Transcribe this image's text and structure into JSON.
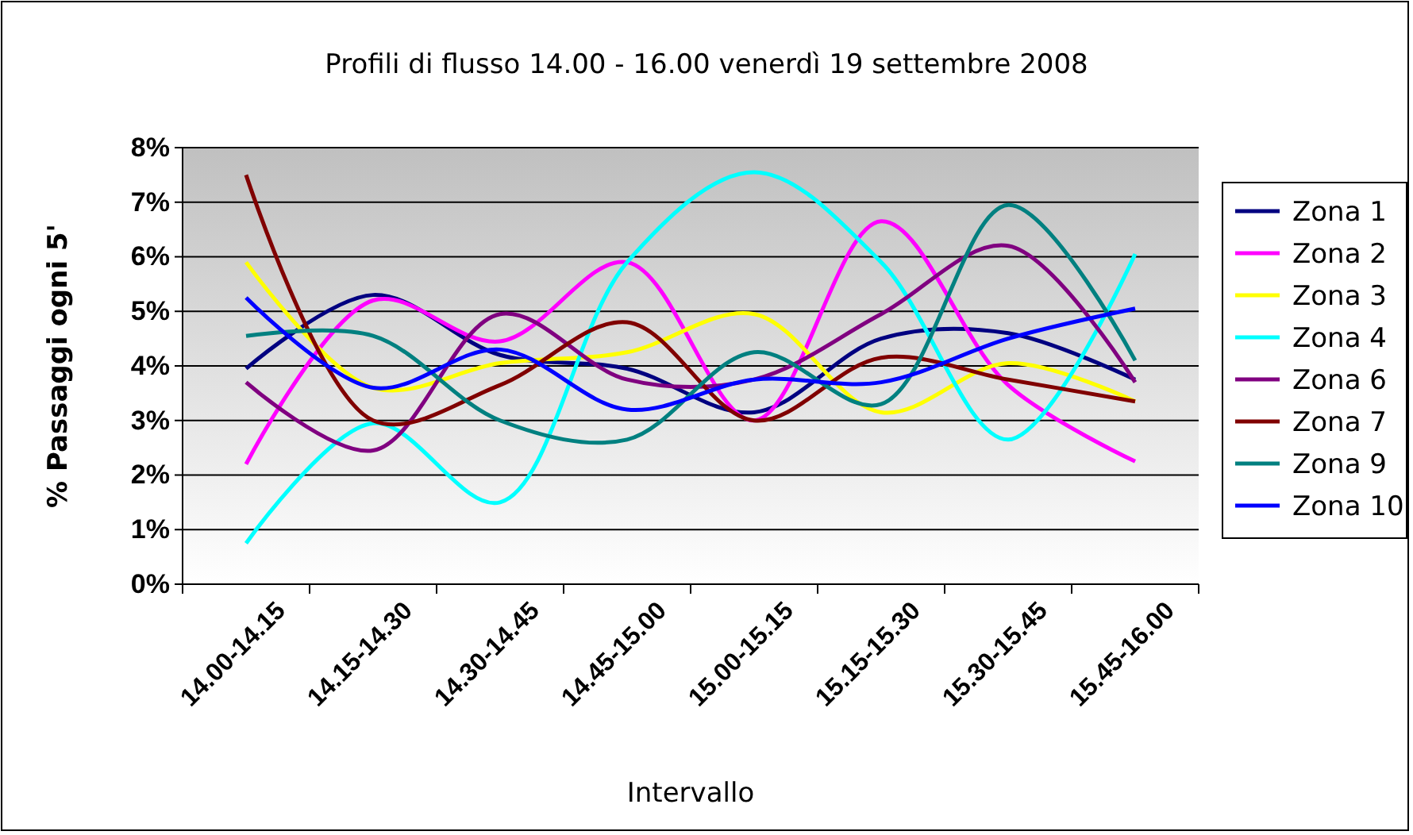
{
  "chart_data": {
    "type": "line",
    "title": "Profili di flusso 14.00 - 16.00 venerdì 19 settembre 2008",
    "xlabel": "Intervallo",
    "ylabel": "% Passaggi ogni 5'",
    "categories": [
      "14.00-14.15",
      "14.15-14.30",
      "14.30-14.45",
      "14.45-15.00",
      "15.00-15.15",
      "15.15-15.30",
      "15.30-15.45",
      "15.45-16.00"
    ],
    "ylim": [
      0,
      8
    ],
    "yticks": [
      {
        "value": 0,
        "label": "0%"
      },
      {
        "value": 1,
        "label": "1%"
      },
      {
        "value": 2,
        "label": "2%"
      },
      {
        "value": 3,
        "label": "3%"
      },
      {
        "value": 4,
        "label": "4%"
      },
      {
        "value": 5,
        "label": "5%"
      },
      {
        "value": 6,
        "label": "6%"
      },
      {
        "value": 7,
        "label": "7%"
      },
      {
        "value": 8,
        "label": "8%"
      }
    ],
    "grid": "y",
    "legend": "right",
    "marker": "none",
    "line_style": "solid",
    "series": [
      {
        "name": "Zona 1",
        "color": "#000080",
        "values": [
          3.95,
          5.3,
          4.2,
          3.95,
          3.15,
          4.5,
          4.6,
          3.75
        ]
      },
      {
        "name": "Zona 2",
        "color": "#ff00ff",
        "values": [
          2.2,
          5.2,
          4.45,
          5.9,
          3.0,
          6.65,
          3.65,
          2.25
        ]
      },
      {
        "name": "Zona 3",
        "color": "#ffff00",
        "values": [
          5.9,
          3.6,
          4.05,
          4.25,
          4.95,
          3.15,
          4.05,
          3.35
        ]
      },
      {
        "name": "Zona 4",
        "color": "#00ffff",
        "values": [
          0.75,
          2.95,
          1.5,
          5.9,
          7.55,
          5.9,
          2.65,
          6.05
        ]
      },
      {
        "name": "Zona 6",
        "color": "#800080",
        "values": [
          3.7,
          2.45,
          4.95,
          3.75,
          3.75,
          4.95,
          6.2,
          3.7
        ]
      },
      {
        "name": "Zona 7",
        "color": "#800000",
        "values": [
          7.5,
          3.0,
          3.65,
          4.8,
          3.0,
          4.15,
          3.75,
          3.35
        ]
      },
      {
        "name": "Zona 9",
        "color": "#008080",
        "values": [
          4.55,
          4.55,
          3.0,
          2.65,
          4.25,
          3.3,
          6.95,
          4.1
        ]
      },
      {
        "name": "Zona 10",
        "color": "#0000ff",
        "values": [
          5.25,
          3.6,
          4.3,
          3.2,
          3.75,
          3.7,
          4.5,
          5.05
        ]
      }
    ]
  }
}
